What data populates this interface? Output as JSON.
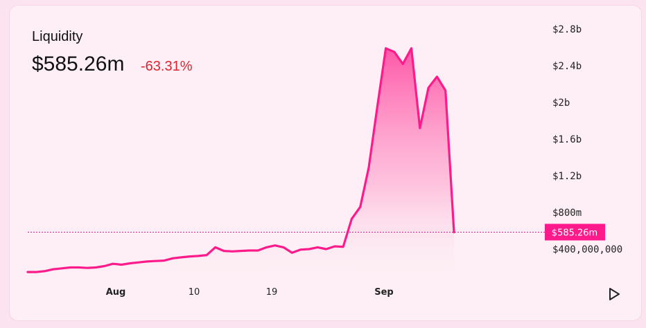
{
  "header": {
    "title": "Liquidity",
    "value": "$585.26m",
    "change": "-63.31%"
  },
  "crosshair_label": "$585.26m",
  "icons": {
    "play": "play-icon"
  },
  "colors": {
    "line": "#ff1a8c",
    "change_negative": "#e0222f",
    "marker_bg": "#ff1a8c"
  },
  "chart_data": {
    "type": "area",
    "title": "Liquidity",
    "xlabel": "",
    "ylabel": "",
    "x_ticks": [
      "Aug",
      "10",
      "19",
      "Sep"
    ],
    "y_ticks": [
      "$400,000,000",
      "$800m",
      "$1.2b",
      "$1.6b",
      "$2b",
      "$2.4b",
      "$2.8b"
    ],
    "ylim": [
      0,
      2800000000
    ],
    "current_value": 585260000,
    "series": [
      {
        "values": [
          150000000,
          150000000,
          160000000,
          180000000,
          190000000,
          200000000,
          200000000,
          195000000,
          200000000,
          215000000,
          240000000,
          230000000,
          245000000,
          255000000,
          265000000,
          270000000,
          275000000,
          300000000,
          310000000,
          320000000,
          325000000,
          335000000,
          420000000,
          380000000,
          375000000,
          380000000,
          385000000,
          385000000,
          420000000,
          440000000,
          420000000,
          360000000,
          395000000,
          400000000,
          420000000,
          400000000,
          430000000,
          425000000,
          730000000,
          860000000,
          1290000000,
          1950000000,
          2590000000,
          2550000000,
          2420000000,
          2590000000,
          1720000000,
          2160000000,
          2280000000,
          2130000000,
          585260000
        ]
      }
    ],
    "grid": false,
    "legend": "none"
  }
}
